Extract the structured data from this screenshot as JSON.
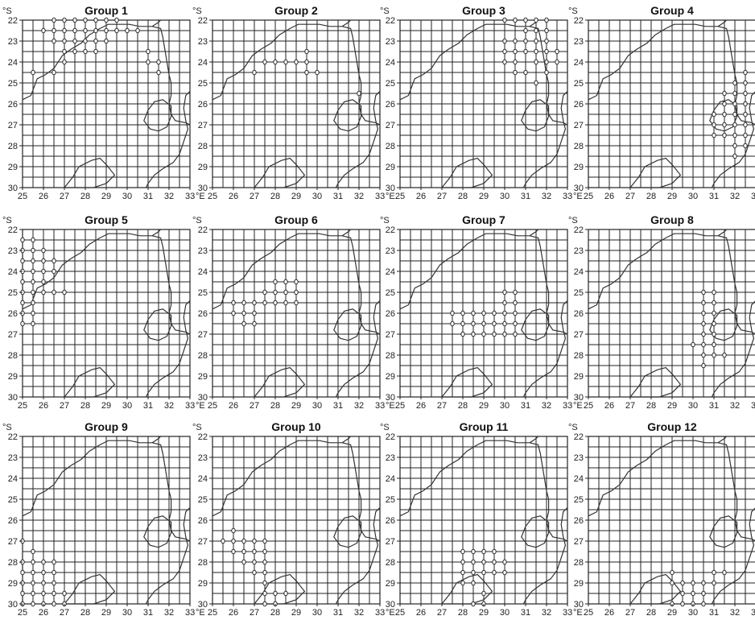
{
  "unit_lat": "°S",
  "unit_lon": "°E",
  "lat_ticks": [
    22,
    23,
    24,
    25,
    26,
    27,
    28,
    29,
    30
  ],
  "lon_ticks": [
    25,
    26,
    27,
    28,
    29,
    30,
    31,
    32,
    33
  ],
  "grid_step": 0.5,
  "colors": {
    "line": "#222222",
    "marker_fill": "#ffffff",
    "background": "#ffffff"
  },
  "boundaries": {
    "country_outline": [
      [
        25,
        25.8
      ],
      [
        25.4,
        25.6
      ],
      [
        25.7,
        24.8
      ],
      [
        26.1,
        24.6
      ],
      [
        26.5,
        24.3
      ],
      [
        26.9,
        23.7
      ],
      [
        27.3,
        23.4
      ],
      [
        27.8,
        23.1
      ],
      [
        28.2,
        22.7
      ],
      [
        28.7,
        22.4
      ],
      [
        29.1,
        22.2
      ],
      [
        29.6,
        22.2
      ],
      [
        30.1,
        22.2
      ],
      [
        30.6,
        22.3
      ],
      [
        31.2,
        22.3
      ],
      [
        31.6,
        22.4
      ],
      [
        31.7,
        22.8
      ],
      [
        31.8,
        23.4
      ],
      [
        31.9,
        24.0
      ],
      [
        32.0,
        24.6
      ],
      [
        32.1,
        25.0
      ],
      [
        32.1,
        25.6
      ],
      [
        32.0,
        26.0
      ],
      [
        32.1,
        26.5
      ],
      [
        32.3,
        26.8
      ],
      [
        32.8,
        26.9
      ],
      [
        33,
        27.0
      ]
    ],
    "east_coast": [
      [
        33,
        25.4
      ],
      [
        32.8,
        25.6
      ],
      [
        32.7,
        26.2
      ],
      [
        32.8,
        26.8
      ],
      [
        32.9,
        27.2
      ],
      [
        32.7,
        27.8
      ],
      [
        32.5,
        28.4
      ],
      [
        32.2,
        28.8
      ],
      [
        31.7,
        29.1
      ],
      [
        31.3,
        29.4
      ],
      [
        31.0,
        29.8
      ],
      [
        30.9,
        30
      ]
    ],
    "north_border": [
      [
        31.2,
        22.3
      ],
      [
        31.5,
        22.1
      ],
      [
        31.6,
        22.0
      ]
    ],
    "swaziland": [
      [
        31.0,
        26.3
      ],
      [
        31.3,
        25.9
      ],
      [
        31.7,
        25.8
      ],
      [
        32.1,
        26.1
      ],
      [
        32.1,
        26.6
      ],
      [
        31.9,
        27.1
      ],
      [
        31.5,
        27.3
      ],
      [
        31.1,
        27.2
      ],
      [
        30.8,
        26.8
      ]
    ],
    "lesotho": [
      [
        27.0,
        30.0
      ],
      [
        27.4,
        29.5
      ],
      [
        27.7,
        29.0
      ],
      [
        28.3,
        28.7
      ],
      [
        28.7,
        28.6
      ],
      [
        29.0,
        28.9
      ],
      [
        29.4,
        29.4
      ],
      [
        29.0,
        29.8
      ],
      [
        28.4,
        30.0
      ]
    ]
  },
  "groups": [
    {
      "title": "Group 1",
      "points": [
        [
          26.5,
          22.0
        ],
        [
          27.0,
          22.0
        ],
        [
          27.5,
          22.0
        ],
        [
          28.0,
          22.0
        ],
        [
          28.5,
          22.0
        ],
        [
          29.0,
          22.0
        ],
        [
          29.5,
          22.0
        ],
        [
          26.0,
          22.5
        ],
        [
          26.5,
          22.5
        ],
        [
          27.0,
          22.5
        ],
        [
          27.5,
          22.5
        ],
        [
          28.0,
          22.5
        ],
        [
          28.5,
          22.5
        ],
        [
          29.0,
          22.5
        ],
        [
          29.5,
          22.5
        ],
        [
          30.0,
          22.5
        ],
        [
          30.5,
          22.5
        ],
        [
          26.5,
          23.0
        ],
        [
          27.0,
          23.0
        ],
        [
          27.5,
          23.0
        ],
        [
          28.0,
          23.0
        ],
        [
          28.5,
          23.0
        ],
        [
          29.0,
          23.0
        ],
        [
          27.0,
          23.5
        ],
        [
          27.5,
          23.5
        ],
        [
          28.0,
          23.5
        ],
        [
          28.5,
          23.5
        ],
        [
          27.0,
          24.0
        ],
        [
          26.5,
          24.5
        ],
        [
          25.5,
          24.5
        ],
        [
          31.0,
          23.5
        ],
        [
          31.0,
          24.0
        ],
        [
          31.5,
          24.0
        ],
        [
          31.5,
          24.5
        ]
      ]
    },
    {
      "title": "Group 2",
      "points": [
        [
          29.5,
          23.5
        ],
        [
          27.5,
          24.0
        ],
        [
          28.0,
          24.0
        ],
        [
          28.5,
          24.0
        ],
        [
          29.0,
          24.0
        ],
        [
          29.5,
          24.0
        ],
        [
          27.0,
          24.5
        ],
        [
          29.5,
          24.5
        ],
        [
          30.0,
          24.5
        ],
        [
          32.0,
          25.5
        ]
      ]
    },
    {
      "title": "Group 3",
      "points": [
        [
          30.0,
          22.0
        ],
        [
          30.5,
          22.0
        ],
        [
          31.0,
          22.0
        ],
        [
          31.5,
          22.0
        ],
        [
          32.0,
          22.0
        ],
        [
          31.0,
          22.5
        ],
        [
          31.5,
          22.5
        ],
        [
          32.0,
          22.5
        ],
        [
          30.0,
          23.0
        ],
        [
          30.5,
          23.0
        ],
        [
          31.0,
          23.0
        ],
        [
          31.5,
          23.0
        ],
        [
          32.0,
          23.0
        ],
        [
          30.0,
          23.5
        ],
        [
          30.5,
          23.5
        ],
        [
          31.0,
          23.5
        ],
        [
          31.5,
          23.5
        ],
        [
          32.0,
          23.5
        ],
        [
          32.5,
          23.5
        ],
        [
          30.0,
          24.0
        ],
        [
          30.5,
          24.0
        ],
        [
          31.5,
          24.0
        ],
        [
          32.0,
          24.0
        ],
        [
          32.5,
          24.0
        ],
        [
          30.5,
          24.5
        ],
        [
          31.0,
          24.5
        ],
        [
          32.0,
          24.5
        ],
        [
          31.5,
          25.0
        ]
      ]
    },
    {
      "title": "Group 4",
      "points": [
        [
          32.5,
          24.5
        ],
        [
          32.0,
          25.0
        ],
        [
          32.5,
          25.0
        ],
        [
          31.5,
          25.5
        ],
        [
          32.0,
          25.5
        ],
        [
          32.5,
          25.5
        ],
        [
          31.5,
          26.0
        ],
        [
          32.0,
          26.0
        ],
        [
          32.5,
          26.0
        ],
        [
          31.5,
          26.5
        ],
        [
          32.0,
          26.5
        ],
        [
          32.5,
          26.5
        ],
        [
          31.0,
          26.5
        ],
        [
          31.0,
          27.0
        ],
        [
          31.5,
          27.0
        ],
        [
          32.0,
          27.0
        ],
        [
          32.5,
          27.0
        ],
        [
          31.0,
          27.5
        ],
        [
          31.5,
          27.5
        ],
        [
          32.0,
          27.5
        ],
        [
          32.5,
          27.5
        ],
        [
          32.0,
          28.0
        ],
        [
          32.5,
          28.0
        ],
        [
          32.0,
          28.5
        ]
      ]
    },
    {
      "title": "Group 5",
      "points": [
        [
          25.0,
          22.5
        ],
        [
          25.5,
          22.5
        ],
        [
          25.0,
          23.0
        ],
        [
          25.5,
          23.0
        ],
        [
          26.0,
          23.0
        ],
        [
          25.0,
          23.5
        ],
        [
          25.5,
          23.5
        ],
        [
          26.0,
          23.5
        ],
        [
          26.5,
          23.5
        ],
        [
          25.0,
          24.0
        ],
        [
          25.5,
          24.0
        ],
        [
          26.0,
          24.0
        ],
        [
          26.5,
          24.0
        ],
        [
          25.0,
          24.5
        ],
        [
          25.5,
          24.5
        ],
        [
          26.0,
          24.5
        ],
        [
          25.0,
          25.0
        ],
        [
          25.5,
          25.0
        ],
        [
          26.0,
          25.0
        ],
        [
          26.5,
          25.0
        ],
        [
          27.0,
          25.0
        ],
        [
          25.0,
          25.5
        ],
        [
          25.5,
          25.5
        ],
        [
          25.0,
          26.0
        ],
        [
          25.5,
          26.0
        ],
        [
          25.0,
          26.5
        ],
        [
          25.5,
          26.5
        ]
      ]
    },
    {
      "title": "Group 6",
      "points": [
        [
          28.0,
          24.5
        ],
        [
          28.5,
          24.5
        ],
        [
          29.0,
          24.5
        ],
        [
          27.5,
          25.0
        ],
        [
          28.0,
          25.0
        ],
        [
          28.5,
          25.0
        ],
        [
          29.0,
          25.0
        ],
        [
          27.5,
          25.5
        ],
        [
          28.0,
          25.5
        ],
        [
          28.5,
          25.5
        ],
        [
          29.0,
          25.5
        ],
        [
          26.0,
          25.5
        ],
        [
          26.5,
          25.5
        ],
        [
          27.0,
          25.5
        ],
        [
          26.0,
          26.0
        ],
        [
          26.5,
          26.0
        ],
        [
          27.0,
          26.0
        ],
        [
          26.5,
          26.5
        ],
        [
          27.0,
          26.5
        ]
      ]
    },
    {
      "title": "Group 7",
      "points": [
        [
          30.0,
          25.0
        ],
        [
          30.5,
          25.0
        ],
        [
          30.0,
          25.5
        ],
        [
          30.5,
          25.5
        ],
        [
          27.5,
          26.0
        ],
        [
          28.0,
          26.0
        ],
        [
          28.5,
          26.0
        ],
        [
          29.0,
          26.0
        ],
        [
          29.5,
          26.0
        ],
        [
          30.0,
          26.0
        ],
        [
          30.5,
          26.0
        ],
        [
          27.5,
          26.5
        ],
        [
          28.0,
          26.5
        ],
        [
          28.5,
          26.5
        ],
        [
          29.0,
          26.5
        ],
        [
          29.5,
          26.5
        ],
        [
          30.0,
          26.5
        ],
        [
          30.5,
          26.5
        ],
        [
          28.0,
          27.0
        ],
        [
          28.5,
          27.0
        ],
        [
          29.0,
          27.0
        ],
        [
          29.5,
          27.0
        ],
        [
          30.0,
          27.0
        ],
        [
          30.5,
          27.0
        ]
      ]
    },
    {
      "title": "Group 8",
      "points": [
        [
          30.5,
          25.0
        ],
        [
          31.0,
          25.0
        ],
        [
          30.5,
          25.5
        ],
        [
          31.0,
          25.5
        ],
        [
          30.5,
          26.0
        ],
        [
          31.0,
          26.0
        ],
        [
          30.5,
          26.5
        ],
        [
          31.0,
          26.5
        ],
        [
          30.5,
          27.0
        ],
        [
          31.0,
          27.0
        ],
        [
          30.5,
          27.5
        ],
        [
          31.0,
          27.5
        ],
        [
          30.0,
          27.5
        ],
        [
          30.5,
          28.0
        ],
        [
          31.0,
          28.0
        ],
        [
          31.5,
          28.0
        ],
        [
          30.5,
          28.5
        ]
      ]
    },
    {
      "title": "Group 9",
      "points": [
        [
          25.0,
          27.0
        ],
        [
          25.5,
          27.5
        ],
        [
          25.0,
          28.0
        ],
        [
          25.5,
          28.0
        ],
        [
          26.0,
          28.0
        ],
        [
          26.5,
          28.0
        ],
        [
          25.0,
          28.5
        ],
        [
          25.5,
          28.5
        ],
        [
          26.0,
          28.5
        ],
        [
          26.5,
          28.5
        ],
        [
          25.0,
          29.0
        ],
        [
          25.5,
          29.0
        ],
        [
          26.0,
          29.0
        ],
        [
          26.5,
          29.0
        ],
        [
          25.0,
          29.5
        ],
        [
          25.5,
          29.5
        ],
        [
          26.0,
          29.5
        ],
        [
          26.5,
          29.5
        ],
        [
          27.0,
          29.5
        ],
        [
          25.0,
          30.0
        ],
        [
          25.5,
          30.0
        ],
        [
          26.0,
          30.0
        ],
        [
          26.5,
          30.0
        ],
        [
          27.0,
          30.0
        ]
      ]
    },
    {
      "title": "Group 10",
      "points": [
        [
          26.0,
          26.5
        ],
        [
          25.5,
          27.0
        ],
        [
          26.0,
          27.0
        ],
        [
          26.5,
          27.0
        ],
        [
          27.0,
          27.0
        ],
        [
          27.5,
          27.0
        ],
        [
          26.0,
          27.5
        ],
        [
          26.5,
          27.5
        ],
        [
          27.0,
          27.5
        ],
        [
          27.5,
          27.5
        ],
        [
          26.5,
          28.0
        ],
        [
          27.0,
          28.0
        ],
        [
          27.5,
          28.0
        ],
        [
          27.0,
          28.5
        ],
        [
          27.5,
          28.5
        ],
        [
          27.5,
          29.0
        ],
        [
          27.5,
          29.5
        ],
        [
          28.0,
          29.5
        ],
        [
          28.5,
          29.5
        ],
        [
          27.5,
          30.0
        ],
        [
          28.0,
          30.0
        ]
      ]
    },
    {
      "title": "Group 11",
      "points": [
        [
          28.0,
          27.5
        ],
        [
          28.5,
          27.5
        ],
        [
          29.0,
          27.5
        ],
        [
          29.5,
          27.5
        ],
        [
          28.0,
          28.0
        ],
        [
          28.5,
          28.0
        ],
        [
          29.0,
          28.0
        ],
        [
          29.5,
          28.0
        ],
        [
          30.0,
          28.0
        ],
        [
          28.0,
          28.5
        ],
        [
          28.5,
          28.5
        ],
        [
          29.0,
          28.5
        ],
        [
          29.5,
          28.5
        ],
        [
          30.0,
          28.5
        ],
        [
          28.0,
          29.0
        ],
        [
          28.5,
          29.0
        ],
        [
          29.0,
          29.5
        ],
        [
          28.5,
          30.0
        ],
        [
          29.0,
          30.0
        ]
      ]
    },
    {
      "title": "Group 12",
      "points": [
        [
          29.0,
          28.5
        ],
        [
          29.0,
          29.0
        ],
        [
          29.5,
          29.0
        ],
        [
          30.0,
          29.0
        ],
        [
          30.5,
          29.0
        ],
        [
          31.0,
          29.0
        ],
        [
          31.5,
          28.5
        ],
        [
          31.0,
          28.5
        ],
        [
          29.5,
          29.5
        ],
        [
          30.0,
          29.5
        ],
        [
          30.5,
          29.5
        ],
        [
          29.0,
          30.0
        ],
        [
          29.5,
          30.0
        ],
        [
          30.0,
          30.0
        ],
        [
          30.5,
          30.0
        ]
      ]
    }
  ]
}
